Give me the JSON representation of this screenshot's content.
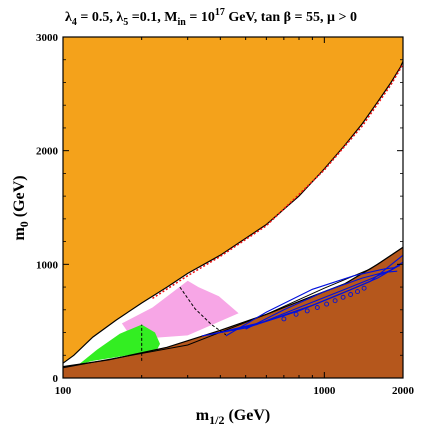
{
  "chart_data": {
    "type": "area",
    "title_parts": {
      "lam4_sym": "λ",
      "lam4_sub": "4",
      "lam4_val": " = 0.5, ",
      "lam5_sym": "λ",
      "lam5_sub": "5",
      "lam5_val": " =0.1, M",
      "min_sub": "in",
      "min_val": " = 10",
      "min_exp": "17",
      "rest": " GeV, tan β = 55,  μ > 0"
    },
    "xlabel_parts": {
      "main": "m",
      "sub": "1/2",
      "unit": " (GeV)"
    },
    "ylabel_parts": {
      "main": "m",
      "sub": "0",
      "unit": " (GeV)"
    },
    "xlim": [
      100,
      2000
    ],
    "ylim": [
      0,
      3000
    ],
    "xticks": [
      "100",
      "1000",
      "2000"
    ],
    "xtick_values": [
      100,
      1000,
      2000
    ],
    "yticks": [
      "0",
      "1000",
      "2000",
      "3000"
    ],
    "ytick_values": [
      0,
      1000,
      2000,
      3000
    ],
    "colors": {
      "orange": "#f4a21b",
      "brown": "#b5571c",
      "pink": "#f7a6e6",
      "green": "#33ee22",
      "blue": "#0010dd",
      "red": "#ee1111"
    },
    "regions": [
      {
        "name": "orange-region",
        "color_key": "orange",
        "points": [
          [
            100,
            3000
          ],
          [
            2000,
            3000
          ],
          [
            2000,
            2785
          ],
          [
            1950,
            2730
          ],
          [
            1800,
            2600
          ],
          [
            1600,
            2430
          ],
          [
            1400,
            2240
          ],
          [
            1200,
            2050
          ],
          [
            1000,
            1840
          ],
          [
            800,
            1600
          ],
          [
            600,
            1350
          ],
          [
            400,
            1080
          ],
          [
            300,
            920
          ],
          [
            250,
            800
          ],
          [
            200,
            660
          ],
          [
            160,
            510
          ],
          [
            130,
            360
          ],
          [
            110,
            200
          ],
          [
            100,
            130
          ]
        ]
      },
      {
        "name": "brown-region",
        "color_key": "brown",
        "points": [
          [
            100,
            0
          ],
          [
            2000,
            0
          ],
          [
            2000,
            1150
          ],
          [
            1600,
            1000
          ],
          [
            1200,
            830
          ],
          [
            900,
            720
          ],
          [
            600,
            560
          ],
          [
            400,
            420
          ],
          [
            250,
            270
          ],
          [
            150,
            160
          ],
          [
            100,
            100
          ]
        ]
      },
      {
        "name": "pink-region",
        "color_key": "pink",
        "points": [
          [
            168,
            480
          ],
          [
            220,
            620
          ],
          [
            300,
            855
          ],
          [
            330,
            800
          ],
          [
            395,
            720
          ],
          [
            470,
            570
          ],
          [
            300,
            375
          ],
          [
            185,
            340
          ]
        ]
      },
      {
        "name": "green-region",
        "color_key": "green",
        "points": [
          [
            115,
            120
          ],
          [
            135,
            250
          ],
          [
            165,
            390
          ],
          [
            200,
            470
          ],
          [
            225,
            400
          ],
          [
            235,
            300
          ],
          [
            228,
            240
          ],
          [
            130,
            150
          ]
        ]
      }
    ],
    "lines": [
      {
        "name": "orange-boundary-line",
        "color": "#000000",
        "width": 1.2,
        "points": [
          [
            100,
            130
          ],
          [
            110,
            200
          ],
          [
            130,
            360
          ],
          [
            160,
            510
          ],
          [
            200,
            660
          ],
          [
            250,
            800
          ],
          [
            300,
            920
          ],
          [
            400,
            1080
          ],
          [
            600,
            1350
          ],
          [
            800,
            1600
          ],
          [
            1000,
            1840
          ],
          [
            1200,
            2050
          ],
          [
            1400,
            2240
          ],
          [
            1600,
            2430
          ],
          [
            1800,
            2600
          ],
          [
            1950,
            2730
          ],
          [
            2000,
            2785
          ]
        ]
      },
      {
        "name": "brown-boundary-line",
        "color": "#000000",
        "width": 1.2,
        "points": [
          [
            100,
            100
          ],
          [
            150,
            160
          ],
          [
            250,
            270
          ],
          [
            400,
            420
          ],
          [
            600,
            560
          ],
          [
            900,
            720
          ],
          [
            1200,
            830
          ],
          [
            1600,
            1000
          ],
          [
            2000,
            1150
          ]
        ]
      },
      {
        "name": "black-diagonal-line",
        "color": "#000000",
        "width": 1,
        "points": [
          [
            100,
            90
          ],
          [
            300,
            290
          ],
          [
            600,
            560
          ],
          [
            1000,
            790
          ],
          [
            1500,
            960
          ],
          [
            2000,
            1150
          ]
        ]
      },
      {
        "name": "dashed-line",
        "color": "#000000",
        "width": 1,
        "dash": "3,2",
        "points": [
          [
            280,
            800
          ],
          [
            320,
            610
          ],
          [
            370,
            470
          ],
          [
            420,
            380
          ]
        ]
      },
      {
        "name": "dashed-line",
        "color": "#000000",
        "width": 1,
        "dash": "3,2",
        "points": [
          [
            200,
            150
          ],
          [
            200,
            470
          ]
        ]
      },
      {
        "name": "red-dotted-line",
        "color": "#ee1111",
        "width": 1.5,
        "dash": "2,2",
        "points": [
          [
            220,
            700
          ],
          [
            300,
            900
          ],
          [
            400,
            1070
          ],
          [
            600,
            1340
          ],
          [
            1000,
            1830
          ],
          [
            1400,
            2220
          ],
          [
            1800,
            2580
          ],
          [
            2000,
            2760
          ]
        ]
      },
      {
        "name": "blue-contour-line",
        "color": "#0010dd",
        "width": 1.1,
        "points": [
          [
            420,
            370
          ],
          [
            600,
            580
          ],
          [
            900,
            780
          ],
          [
            1300,
            900
          ],
          [
            1700,
            960
          ],
          [
            1850,
            970
          ],
          [
            1950,
            990
          ]
        ]
      },
      {
        "name": "blue-contour-line",
        "color": "#0010dd",
        "width": 1.1,
        "points": [
          [
            500,
            430
          ],
          [
            700,
            600
          ],
          [
            1000,
            760
          ],
          [
            1400,
            880
          ],
          [
            1700,
            930
          ],
          [
            1900,
            940
          ]
        ]
      },
      {
        "name": "blue-contour-line",
        "color": "#0010dd",
        "width": 1.1,
        "points": [
          [
            360,
            380
          ],
          [
            550,
            470
          ],
          [
            800,
            620
          ],
          [
            1200,
            780
          ],
          [
            1500,
            870
          ],
          [
            1800,
            950
          ],
          [
            2000,
            1020
          ]
        ]
      },
      {
        "name": "blue-contour-line",
        "color": "#0010dd",
        "width": 1.1,
        "points": [
          [
            380,
            390
          ],
          [
            600,
            500
          ],
          [
            900,
            640
          ],
          [
            1300,
            790
          ],
          [
            1600,
            880
          ],
          [
            1900,
            980
          ]
        ]
      },
      {
        "name": "blue-contour-line",
        "color": "#0010dd",
        "width": 1.1,
        "points": [
          [
            340,
            370
          ],
          [
            500,
            440
          ],
          [
            800,
            590
          ],
          [
            1100,
            720
          ],
          [
            1500,
            850
          ],
          [
            2000,
            1080
          ]
        ]
      }
    ],
    "markers": [
      {
        "name": "blue-circle-marker",
        "color": "#0010dd",
        "points": [
          [
            700,
            520
          ],
          [
            780,
            560
          ],
          [
            860,
            590
          ],
          [
            940,
            620
          ],
          [
            1020,
            650
          ],
          [
            1100,
            680
          ],
          [
            1180,
            710
          ],
          [
            1260,
            735
          ],
          [
            1340,
            760
          ],
          [
            1420,
            790
          ]
        ]
      }
    ]
  }
}
